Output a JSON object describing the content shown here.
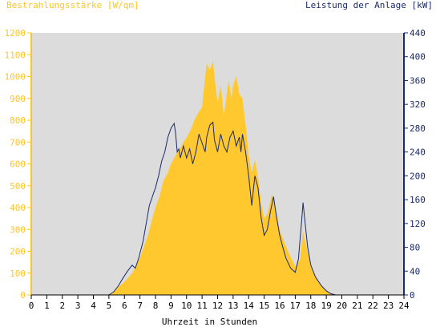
{
  "chart_data": {
    "type": "area",
    "title_left": "Bestrahlungsstärke [W/qm]",
    "title_right": "Leistung der Anlage [kW]",
    "xlabel": "Uhrzeit in Stunden",
    "x_ticks": [
      "0",
      "1",
      "2",
      "3",
      "4",
      "5",
      "6",
      "7",
      "8",
      "9",
      "10",
      "11",
      "12",
      "13",
      "14",
      "15",
      "16",
      "17",
      "18",
      "19",
      "20",
      "21",
      "22",
      "23",
      "24"
    ],
    "xlim": [
      0,
      24
    ],
    "y_left_lim": [
      0,
      1200
    ],
    "y_left_ticks": [
      "0",
      "100",
      "200",
      "300",
      "400",
      "500",
      "600",
      "700",
      "800",
      "900",
      "1000",
      "1100",
      "1200"
    ],
    "y_right_lim": [
      0,
      440
    ],
    "y_right_ticks": [
      "0",
      "40",
      "80",
      "120",
      "160",
      "200",
      "240",
      "280",
      "320",
      "360",
      "400",
      "440"
    ],
    "colors": {
      "irradiance": "#ffc82e",
      "power": "#1a2a6c",
      "plot_bg": "#dcdcdc",
      "left_axis": "#ffc425",
      "right_axis": "#1a2a6c"
    },
    "series": [
      {
        "name": "Bestrahlungsstärke [W/qm]",
        "axis": "left",
        "style": "area",
        "points": [
          [
            0,
            0
          ],
          [
            5.0,
            0
          ],
          [
            5.2,
            5
          ],
          [
            5.5,
            30
          ],
          [
            6.0,
            60
          ],
          [
            6.5,
            100
          ],
          [
            7.0,
            170
          ],
          [
            7.5,
            270
          ],
          [
            7.8,
            350
          ],
          [
            8.0,
            400
          ],
          [
            8.3,
            460
          ],
          [
            8.5,
            520
          ],
          [
            8.8,
            560
          ],
          [
            9.0,
            600
          ],
          [
            9.3,
            640
          ],
          [
            9.5,
            660
          ],
          [
            9.8,
            700
          ],
          [
            10.0,
            720
          ],
          [
            10.3,
            760
          ],
          [
            10.5,
            800
          ],
          [
            10.8,
            840
          ],
          [
            11.0,
            860
          ],
          [
            11.2,
            1000
          ],
          [
            11.3,
            1060
          ],
          [
            11.5,
            1030
          ],
          [
            11.7,
            1070
          ],
          [
            11.8,
            1000
          ],
          [
            12.0,
            880
          ],
          [
            12.2,
            960
          ],
          [
            12.4,
            820
          ],
          [
            12.5,
            870
          ],
          [
            12.7,
            980
          ],
          [
            12.9,
            900
          ],
          [
            13.0,
            960
          ],
          [
            13.2,
            1000
          ],
          [
            13.4,
            920
          ],
          [
            13.6,
            900
          ],
          [
            13.8,
            780
          ],
          [
            14.0,
            640
          ],
          [
            14.2,
            560
          ],
          [
            14.4,
            620
          ],
          [
            14.6,
            540
          ],
          [
            14.8,
            420
          ],
          [
            15.0,
            350
          ],
          [
            15.2,
            370
          ],
          [
            15.5,
            460
          ],
          [
            15.7,
            410
          ],
          [
            16.0,
            300
          ],
          [
            16.3,
            240
          ],
          [
            16.6,
            190
          ],
          [
            17.0,
            130
          ],
          [
            17.3,
            160
          ],
          [
            17.5,
            290
          ],
          [
            17.7,
            230
          ],
          [
            18.0,
            130
          ],
          [
            18.3,
            90
          ],
          [
            18.6,
            50
          ],
          [
            19.0,
            20
          ],
          [
            19.4,
            5
          ],
          [
            19.6,
            0
          ],
          [
            24,
            0
          ]
        ]
      },
      {
        "name": "Leistung der Anlage [kW]",
        "axis": "right",
        "style": "line",
        "points": [
          [
            0,
            0
          ],
          [
            5.0,
            0
          ],
          [
            5.3,
            5
          ],
          [
            5.6,
            15
          ],
          [
            5.9,
            28
          ],
          [
            6.2,
            40
          ],
          [
            6.5,
            50
          ],
          [
            6.7,
            45
          ],
          [
            6.9,
            60
          ],
          [
            7.2,
            90
          ],
          [
            7.4,
            120
          ],
          [
            7.6,
            150
          ],
          [
            7.8,
            165
          ],
          [
            8.0,
            180
          ],
          [
            8.2,
            200
          ],
          [
            8.4,
            225
          ],
          [
            8.6,
            240
          ],
          [
            8.8,
            265
          ],
          [
            9.0,
            280
          ],
          [
            9.2,
            288
          ],
          [
            9.3,
            270
          ],
          [
            9.4,
            240
          ],
          [
            9.5,
            245
          ],
          [
            9.6,
            230
          ],
          [
            9.8,
            250
          ],
          [
            10.0,
            230
          ],
          [
            10.2,
            245
          ],
          [
            10.4,
            220
          ],
          [
            10.6,
            240
          ],
          [
            10.8,
            270
          ],
          [
            11.0,
            255
          ],
          [
            11.2,
            240
          ],
          [
            11.3,
            265
          ],
          [
            11.5,
            285
          ],
          [
            11.7,
            290
          ],
          [
            11.8,
            260
          ],
          [
            12.0,
            240
          ],
          [
            12.2,
            270
          ],
          [
            12.4,
            250
          ],
          [
            12.6,
            240
          ],
          [
            12.8,
            265
          ],
          [
            13.0,
            275
          ],
          [
            13.2,
            250
          ],
          [
            13.4,
            265
          ],
          [
            13.5,
            240
          ],
          [
            13.6,
            270
          ],
          [
            13.8,
            240
          ],
          [
            14.0,
            200
          ],
          [
            14.2,
            150
          ],
          [
            14.4,
            200
          ],
          [
            14.6,
            180
          ],
          [
            14.8,
            130
          ],
          [
            15.0,
            100
          ],
          [
            15.2,
            110
          ],
          [
            15.4,
            140
          ],
          [
            15.6,
            165
          ],
          [
            15.8,
            130
          ],
          [
            16.0,
            100
          ],
          [
            16.2,
            80
          ],
          [
            16.4,
            62
          ],
          [
            16.7,
            45
          ],
          [
            17.0,
            38
          ],
          [
            17.2,
            60
          ],
          [
            17.4,
            120
          ],
          [
            17.5,
            155
          ],
          [
            17.6,
            130
          ],
          [
            17.8,
            80
          ],
          [
            18.0,
            50
          ],
          [
            18.3,
            30
          ],
          [
            18.7,
            15
          ],
          [
            19.0,
            7
          ],
          [
            19.3,
            2
          ],
          [
            19.6,
            0
          ],
          [
            24,
            0
          ]
        ]
      }
    ]
  }
}
